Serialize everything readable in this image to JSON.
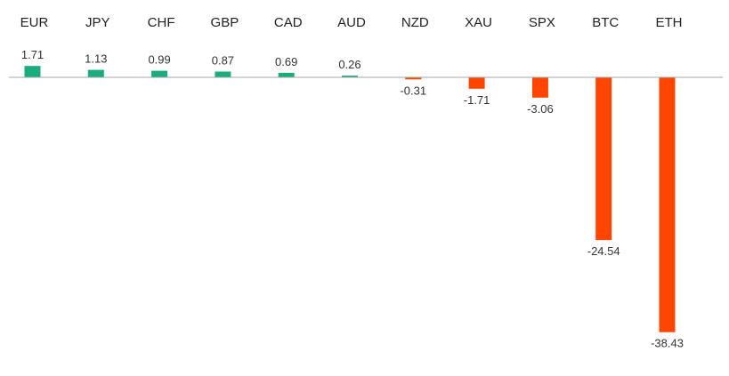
{
  "chart_data": {
    "type": "bar",
    "categories": [
      "EUR",
      "JPY",
      "CHF",
      "GBP",
      "CAD",
      "AUD",
      "NZD",
      "XAU",
      "SPX",
      "BTC",
      "ETH"
    ],
    "values": [
      1.71,
      1.13,
      0.99,
      0.87,
      0.69,
      0.26,
      -0.31,
      -1.71,
      -3.06,
      -24.54,
      -38.43
    ],
    "data_labels": [
      "1.71",
      "1.13",
      "0.99",
      "0.87",
      "0.69",
      "0.26",
      "-0.31",
      "-1.71",
      "-3.06",
      "-24.54",
      "-38.43"
    ],
    "title": "",
    "xlabel": "",
    "ylabel": "",
    "ylim": [
      -38.43,
      1.71
    ],
    "grid": false,
    "legend": "none",
    "colors": {
      "positive": "#1aab7f",
      "negative": "#ff4500",
      "baseline": "#a6a6a6"
    }
  }
}
